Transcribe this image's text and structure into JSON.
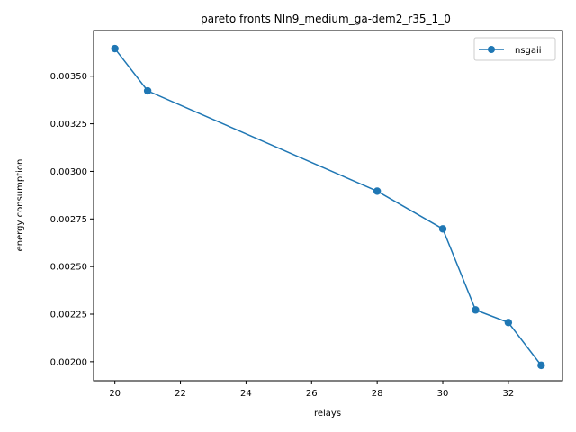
{
  "chart_data": {
    "type": "line",
    "title": "pareto fronts NIn9_medium_ga-dem2_r35_1_0",
    "xlabel": "relays",
    "ylabel": "energy consumption",
    "xlim": [
      19.35,
      33.65
    ],
    "ylim": [
      0.0019,
      0.00374
    ],
    "xticks": [
      20,
      22,
      24,
      26,
      28,
      30,
      32
    ],
    "xtick_labels": [
      "20",
      "22",
      "24",
      "26",
      "28",
      "30",
      "32"
    ],
    "yticks": [
      0.002,
      0.00225,
      0.0025,
      0.00275,
      0.003,
      0.00325,
      0.0035
    ],
    "ytick_labels": [
      "0.00200",
      "0.00225",
      "0.00250",
      "0.00275",
      "0.00300",
      "0.00325",
      "0.00350"
    ],
    "grid": false,
    "legend_position": "top-right",
    "series": [
      {
        "name": "nsgaii",
        "color": "#1f77b4",
        "marker": "circle",
        "x": [
          20,
          21,
          28,
          30,
          31,
          32,
          33
        ],
        "y": [
          0.003645,
          0.003423,
          0.002896,
          0.002698,
          0.002272,
          0.002206,
          0.001981
        ]
      }
    ]
  }
}
